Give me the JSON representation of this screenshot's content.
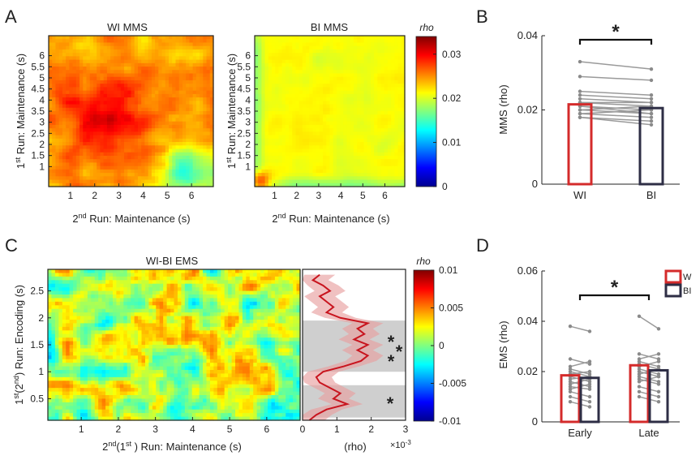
{
  "panels": {
    "A": {
      "letter": "A",
      "left": {
        "title": "WI MMS",
        "xlabel_sup": "nd",
        "xlabel_pre": "2",
        "xlabel_post": " Run: Maintenance (s)",
        "ylabel_sup": "st",
        "ylabel_pre": "1",
        "ylabel_post": " Run: Maintenance (s)",
        "xticks": [
          "1",
          "2",
          "3",
          "4",
          "5",
          "6"
        ],
        "yticks": [
          "1",
          "1.5",
          "2",
          "2.5",
          "3",
          "3.5",
          "4",
          "4.5",
          "5",
          "5.5",
          "6"
        ]
      },
      "right": {
        "title": "BI MMS",
        "xlabel_sup": "nd",
        "xlabel_pre": "2",
        "xlabel_post": " Run: Maintenance (s)",
        "ylabel_sup": "st",
        "ylabel_pre": "1",
        "ylabel_post": " Run: Maintenance (s)",
        "xticks": [
          "1",
          "2",
          "3",
          "4",
          "5",
          "6"
        ],
        "yticks": [
          "1",
          "1.5",
          "2",
          "2.5",
          "3",
          "3.5",
          "4",
          "4.5",
          "5",
          "5.5",
          "6"
        ]
      },
      "colorbar": {
        "title": "rho",
        "ticks": [
          "0.03",
          "0.02",
          "0.01",
          "0"
        ]
      }
    },
    "B": {
      "letter": "B",
      "ylabel": "MMS (rho)",
      "categories": [
        "WI",
        "BI"
      ],
      "yticks": [
        "0",
        "0.02",
        "0.04"
      ],
      "sig": "*"
    },
    "C": {
      "letter": "C",
      "title": "WI-BI EMS",
      "xlabel_pre1": "2",
      "xlabel_sup1": "nd",
      "xlabel_mid": "(1",
      "xlabel_sup2": "st",
      "xlabel_post": " ) Run: Maintenance (s)",
      "ylabel_pre1": "1",
      "ylabel_sup1": "st",
      "ylabel_mid": "(2",
      "ylabel_sup2": "nd",
      "ylabel_post": ") Run: Encoding (s)",
      "xticks": [
        "1",
        "2",
        "3",
        "4",
        "5",
        "6"
      ],
      "yticks": [
        "0.5",
        "1",
        "1.5",
        "2",
        "2.5"
      ],
      "profile_xticks": [
        "0",
        "1",
        "2",
        "3"
      ],
      "profile_xlabel": "(rho)",
      "profile_scale": "×10",
      "profile_scale_exp": "-3",
      "sig_marks": [
        "*",
        "*",
        "*",
        "*"
      ],
      "colorbar": {
        "title": "rho",
        "ticks": [
          "0.01",
          "0.005",
          "0",
          "-0.005",
          "-0.01"
        ]
      }
    },
    "D": {
      "letter": "D",
      "ylabel": "EMS (rho)",
      "categories": [
        "Early",
        "Late"
      ],
      "yticks": [
        "0",
        "0.02",
        "0.04",
        "0.06"
      ],
      "legend": [
        "W",
        "BI"
      ],
      "sig": "*"
    }
  },
  "chart_data": [
    {
      "type": "heatmap",
      "title": "WI MMS",
      "xlabel": "2nd Run: Maintenance (s)",
      "ylabel": "1st Run: Maintenance (s)",
      "xlim": [
        0.1,
        6.9
      ],
      "ylim": [
        0.1,
        6.9
      ],
      "clim": [
        0,
        0.034
      ],
      "description_values": {
        "typical": 0.024,
        "center_peak": 0.03,
        "bottom_right_low": 0.014
      }
    },
    {
      "type": "heatmap",
      "title": "BI MMS",
      "xlabel": "2nd Run: Maintenance (s)",
      "ylabel": "1st Run: Maintenance (s)",
      "xlim": [
        0.1,
        6.9
      ],
      "ylim": [
        0.1,
        6.9
      ],
      "clim": [
        0,
        0.034
      ],
      "description_values": {
        "typical": 0.021,
        "corner_peak": 0.03
      }
    },
    {
      "type": "bar",
      "categories": [
        "WI",
        "BI"
      ],
      "values": [
        0.0215,
        0.0205
      ],
      "ylabel": "MMS (rho)",
      "ylim": [
        0,
        0.04
      ],
      "subjects": [
        [
          0.033,
          0.031
        ],
        [
          0.029,
          0.028
        ],
        [
          0.025,
          0.024
        ],
        [
          0.024,
          0.023
        ],
        [
          0.023,
          0.022
        ],
        [
          0.022,
          0.021
        ],
        [
          0.022,
          0.022
        ],
        [
          0.021,
          0.02
        ],
        [
          0.021,
          0.019
        ],
        [
          0.02,
          0.021
        ],
        [
          0.02,
          0.019
        ],
        [
          0.019,
          0.018
        ],
        [
          0.019,
          0.02
        ],
        [
          0.018,
          0.017
        ],
        [
          0.018,
          0.016
        ]
      ]
    },
    {
      "type": "heatmap",
      "title": "WI-BI EMS",
      "xlabel": "2nd(1st ) Run: Maintenance (s)",
      "ylabel": "1st(2nd) Run: Encoding (s)",
      "xlim": [
        0.1,
        6.9
      ],
      "ylim": [
        0.1,
        2.9
      ],
      "clim": [
        -0.01,
        0.01
      ]
    },
    {
      "type": "line",
      "xlabel": "(rho)",
      "xlim": [
        0,
        3
      ],
      "x_scale": "1e-3",
      "y": [
        0.1,
        0.2,
        0.3,
        0.4,
        0.5,
        0.6,
        0.7,
        0.8,
        0.9,
        1.0,
        1.1,
        1.2,
        1.3,
        1.4,
        1.5,
        1.6,
        1.7,
        1.8,
        1.9,
        2.0,
        2.1,
        2.2,
        2.3,
        2.4,
        2.5,
        2.6,
        2.7,
        2.8
      ],
      "x": [
        0.2,
        0.4,
        0.7,
        1.3,
        0.9,
        1.1,
        0.8,
        0.5,
        0.4,
        0.6,
        1.2,
        1.7,
        1.9,
        1.6,
        1.9,
        1.5,
        1.8,
        1.6,
        1.9,
        1.1,
        0.7,
        0.9,
        0.7,
        0.5,
        0.8,
        0.6,
        0.3,
        0.5
      ],
      "ci_halfwidth": 0.45,
      "sig_bands": [
        [
          0.15,
          0.75
        ],
        [
          1.0,
          1.95
        ]
      ]
    },
    {
      "type": "bar",
      "categories": [
        "Early",
        "Late"
      ],
      "series": [
        {
          "name": "W",
          "values": [
            0.0185,
            0.0225
          ]
        },
        {
          "name": "BI",
          "values": [
            0.0175,
            0.0205
          ]
        }
      ],
      "ylabel": "EMS (rho)",
      "ylim": [
        0,
        0.06
      ],
      "subjects": {
        "Early": [
          [
            0.038,
            0.036
          ],
          [
            0.025,
            0.023
          ],
          [
            0.022,
            0.024
          ],
          [
            0.021,
            0.019
          ],
          [
            0.02,
            0.018
          ],
          [
            0.019,
            0.02
          ],
          [
            0.018,
            0.016
          ],
          [
            0.017,
            0.018
          ],
          [
            0.016,
            0.014
          ],
          [
            0.015,
            0.017
          ],
          [
            0.014,
            0.013
          ],
          [
            0.013,
            0.015
          ],
          [
            0.012,
            0.01
          ],
          [
            0.01,
            0.008
          ],
          [
            0.008,
            0.006
          ]
        ],
        "Late": [
          [
            0.042,
            0.037
          ],
          [
            0.027,
            0.025
          ],
          [
            0.025,
            0.027
          ],
          [
            0.024,
            0.022
          ],
          [
            0.023,
            0.021
          ],
          [
            0.022,
            0.024
          ],
          [
            0.021,
            0.019
          ],
          [
            0.02,
            0.018
          ],
          [
            0.019,
            0.021
          ],
          [
            0.018,
            0.016
          ],
          [
            0.017,
            0.015
          ],
          [
            0.016,
            0.018
          ],
          [
            0.014,
            0.012
          ],
          [
            0.012,
            0.01
          ],
          [
            0.01,
            0.008
          ]
        ]
      }
    }
  ]
}
